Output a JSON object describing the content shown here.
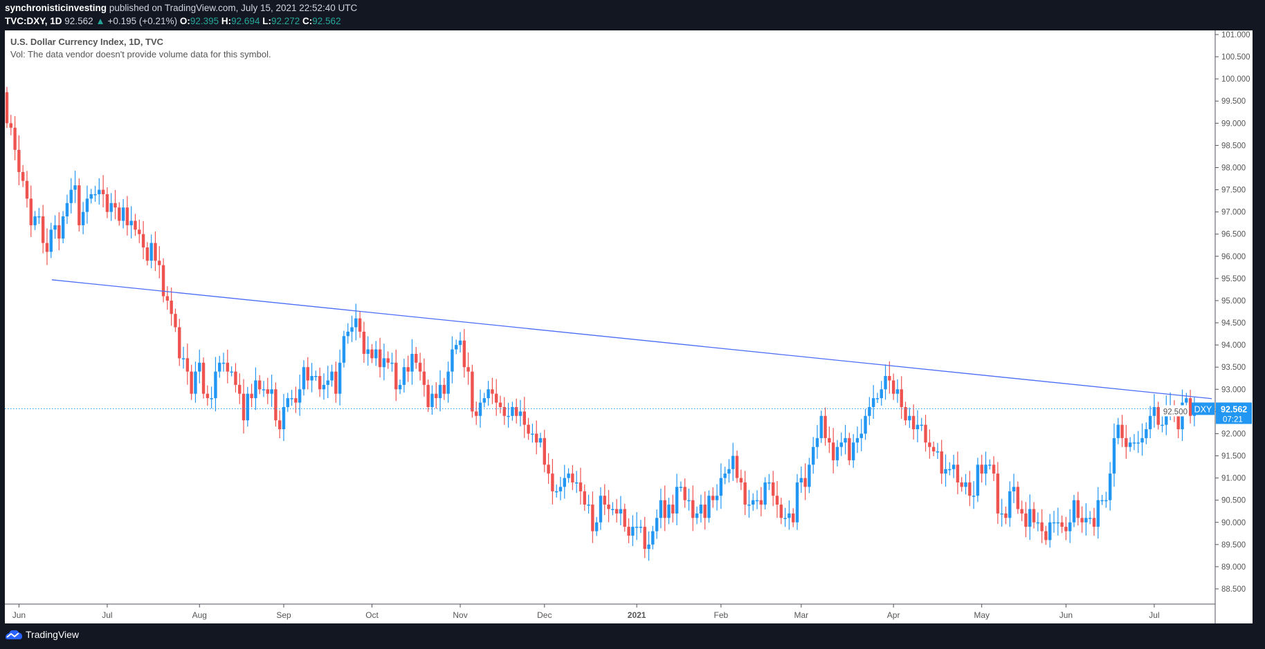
{
  "header": {
    "author": "synchronisticinvesting",
    "published": "published on TradingView.com, July 15, 2021 22:52:40 UTC",
    "symbol": "TVC:DXY, 1D",
    "last": "92.562",
    "change": "+0.195 (+0.21%)",
    "open_label": "O:",
    "open": "92.395",
    "high_label": "H:",
    "high": "92.694",
    "low_label": "L:",
    "low": "92.272",
    "close_label": "C:",
    "close": "92.562",
    "up_arrow_icon": "triangle-up-icon"
  },
  "legend": {
    "title": "U.S. Dollar Currency Index, 1D, TVC",
    "volume_note": "Vol: The data vendor doesn't provide volume data for this symbol."
  },
  "footer": {
    "brand": "TradingView",
    "logo_icon": "tradingview-logo-icon"
  },
  "colors": {
    "up": "#2196f3",
    "down": "#ef5350",
    "trendline": "#4a6cf7",
    "background": "#131722"
  },
  "chart_data": {
    "type": "candlestick",
    "symbol_tag": "DXY",
    "last_price": "92.562",
    "countdown": "07:21",
    "ylim": [
      88.25,
      101.1
    ],
    "y_ticks": [
      "101.000",
      "100.500",
      "100.000",
      "99.500",
      "99.000",
      "98.500",
      "98.000",
      "97.500",
      "97.000",
      "96.500",
      "96.000",
      "95.500",
      "95.000",
      "94.500",
      "94.000",
      "93.500",
      "93.000",
      "92.500",
      "92.000",
      "91.500",
      "91.000",
      "90.500",
      "90.000",
      "89.500",
      "89.000",
      "88.500"
    ],
    "x_ticks": [
      "Jun",
      "Jul",
      "Aug",
      "Sep",
      "Oct",
      "Nov",
      "Dec",
      "2021",
      "Feb",
      "Mar",
      "Apr",
      "May",
      "Jun",
      "Jul"
    ],
    "first_open": 99.7,
    "closes": [
      99.0,
      98.9,
      98.4,
      97.9,
      97.7,
      97.3,
      96.7,
      96.9,
      96.9,
      96.3,
      96.1,
      96.6,
      96.7,
      96.4,
      96.9,
      97.2,
      97.5,
      97.6,
      96.7,
      97.0,
      97.3,
      97.4,
      97.4,
      97.5,
      97.4,
      97.0,
      97.2,
      97.1,
      96.8,
      97.1,
      96.7,
      96.8,
      96.6,
      96.5,
      96.2,
      95.9,
      96.3,
      95.9,
      95.8,
      95.1,
      95.0,
      94.7,
      94.4,
      93.7,
      93.7,
      93.4,
      92.9,
      93.4,
      93.6,
      92.9,
      92.8,
      92.8,
      93.4,
      93.6,
      93.6,
      93.4,
      93.4,
      93.1,
      92.9,
      92.3,
      92.9,
      92.8,
      93.2,
      93.0,
      93.0,
      92.9,
      93.0,
      92.3,
      92.1,
      92.6,
      92.8,
      92.8,
      92.7,
      93.0,
      93.5,
      93.2,
      93.3,
      93.3,
      93.0,
      93.1,
      93.2,
      93.4,
      92.9,
      93.6,
      94.2,
      94.3,
      94.4,
      94.6,
      94.3,
      93.8,
      93.9,
      93.7,
      93.9,
      93.5,
      93.7,
      93.6,
      93.6,
      93.0,
      93.1,
      93.5,
      93.4,
      93.8,
      93.6,
      93.4,
      93.1,
      92.6,
      92.9,
      92.8,
      93.1,
      92.9,
      93.4,
      93.9,
      94.0,
      94.1,
      93.5,
      93.4,
      92.5,
      92.4,
      92.7,
      92.8,
      93.0,
      92.9,
      92.7,
      92.6,
      92.4,
      92.4,
      92.6,
      92.4,
      92.5,
      92.2,
      92.0,
      92.0,
      91.8,
      91.9,
      91.3,
      91.1,
      90.7,
      90.7,
      90.8,
      91.0,
      91.1,
      90.9,
      90.9,
      90.7,
      90.4,
      90.4,
      89.8,
      90.0,
      90.6,
      90.4,
      90.3,
      90.3,
      90.2,
      90.3,
      89.9,
      89.7,
      89.9,
      89.9,
      89.9,
      89.4,
      89.5,
      89.8,
      90.1,
      90.5,
      90.1,
      90.4,
      90.2,
      90.8,
      90.8,
      90.5,
      90.5,
      90.1,
      90.2,
      90.4,
      90.1,
      90.6,
      90.5,
      90.6,
      91.0,
      91.1,
      91.2,
      91.5,
      91.0,
      90.9,
      90.4,
      90.4,
      90.5,
      90.5,
      90.4,
      90.9,
      90.9,
      90.6,
      90.4,
      90.1,
      90.1,
      90.2,
      90.0,
      90.9,
      91.0,
      90.8,
      91.3,
      91.7,
      91.9,
      92.4,
      91.9,
      91.8,
      91.4,
      91.7,
      91.8,
      91.9,
      91.4,
      91.8,
      91.9,
      92.0,
      92.4,
      92.6,
      92.8,
      92.8,
      93.0,
      93.3,
      93.2,
      92.9,
      93.0,
      92.6,
      92.3,
      92.4,
      92.1,
      92.2,
      92.2,
      91.8,
      91.7,
      91.6,
      91.6,
      91.1,
      91.2,
      91.2,
      91.3,
      90.9,
      90.8,
      90.9,
      90.6,
      90.6,
      91.3,
      91.1,
      91.3,
      91.3,
      91.1,
      90.2,
      90.2,
      90.1,
      90.7,
      90.8,
      90.3,
      90.2,
      89.9,
      90.3,
      90.0,
      90.0,
      89.8,
      89.6,
      90.0,
      90.0,
      90.0,
      89.9,
      89.8,
      90.0,
      90.5,
      90.1,
      90.0,
      90.1,
      90.1,
      89.9,
      90.5,
      90.5,
      90.5,
      91.1,
      91.9,
      92.2,
      91.9,
      91.7,
      91.8,
      91.8,
      91.8,
      91.9,
      92.1,
      92.4,
      92.6,
      92.2,
      92.2,
      92.6,
      92.6,
      92.4,
      92.1,
      92.7,
      92.8,
      92.4,
      92.562
    ],
    "trendline": {
      "from_price": 95.47,
      "to_price": 92.79
    }
  }
}
